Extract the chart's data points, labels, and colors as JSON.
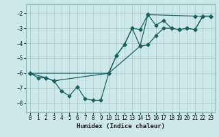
{
  "title": "",
  "xlabel": "Humidex (Indice chaleur)",
  "xlim": [
    -0.5,
    23.5
  ],
  "ylim": [
    -8.6,
    -1.4
  ],
  "yticks": [
    -8,
    -7,
    -6,
    -5,
    -4,
    -3,
    -2
  ],
  "xticks": [
    0,
    1,
    2,
    3,
    4,
    5,
    6,
    7,
    8,
    9,
    10,
    11,
    12,
    13,
    14,
    15,
    16,
    17,
    18,
    19,
    20,
    21,
    22,
    23
  ],
  "bg_color": "#cce8e8",
  "grid_color": "#b0d0d0",
  "line_color": "#1a6060",
  "line1_x": [
    0,
    1,
    2,
    3,
    4,
    5,
    6,
    7,
    8,
    9,
    10,
    11,
    12,
    13,
    14,
    15,
    16,
    17,
    18,
    19,
    20,
    21,
    22,
    23
  ],
  "line1_y": [
    -6.0,
    -6.3,
    -6.3,
    -6.5,
    -7.2,
    -7.5,
    -6.9,
    -7.7,
    -7.8,
    -7.8,
    -6.0,
    -4.8,
    -4.1,
    -3.0,
    -3.1,
    -2.1,
    -2.8,
    -2.5,
    -3.0,
    -3.1,
    -3.0,
    -3.1,
    -2.2,
    -2.2
  ],
  "line2_x": [
    0,
    2,
    3,
    10,
    14,
    15,
    16,
    17,
    18,
    19,
    20,
    21,
    22,
    23
  ],
  "line2_y": [
    -6.0,
    -6.3,
    -6.5,
    -6.0,
    -4.2,
    -4.1,
    -3.5,
    -3.0,
    -3.0,
    -3.1,
    -3.0,
    -3.1,
    -2.2,
    -2.2
  ],
  "line3_x": [
    0,
    10,
    11,
    12,
    13,
    14,
    15,
    21,
    22,
    23
  ],
  "line3_y": [
    -6.0,
    -6.0,
    -4.8,
    -4.1,
    -3.0,
    -4.2,
    -2.1,
    -2.2,
    -2.2,
    -2.2
  ]
}
